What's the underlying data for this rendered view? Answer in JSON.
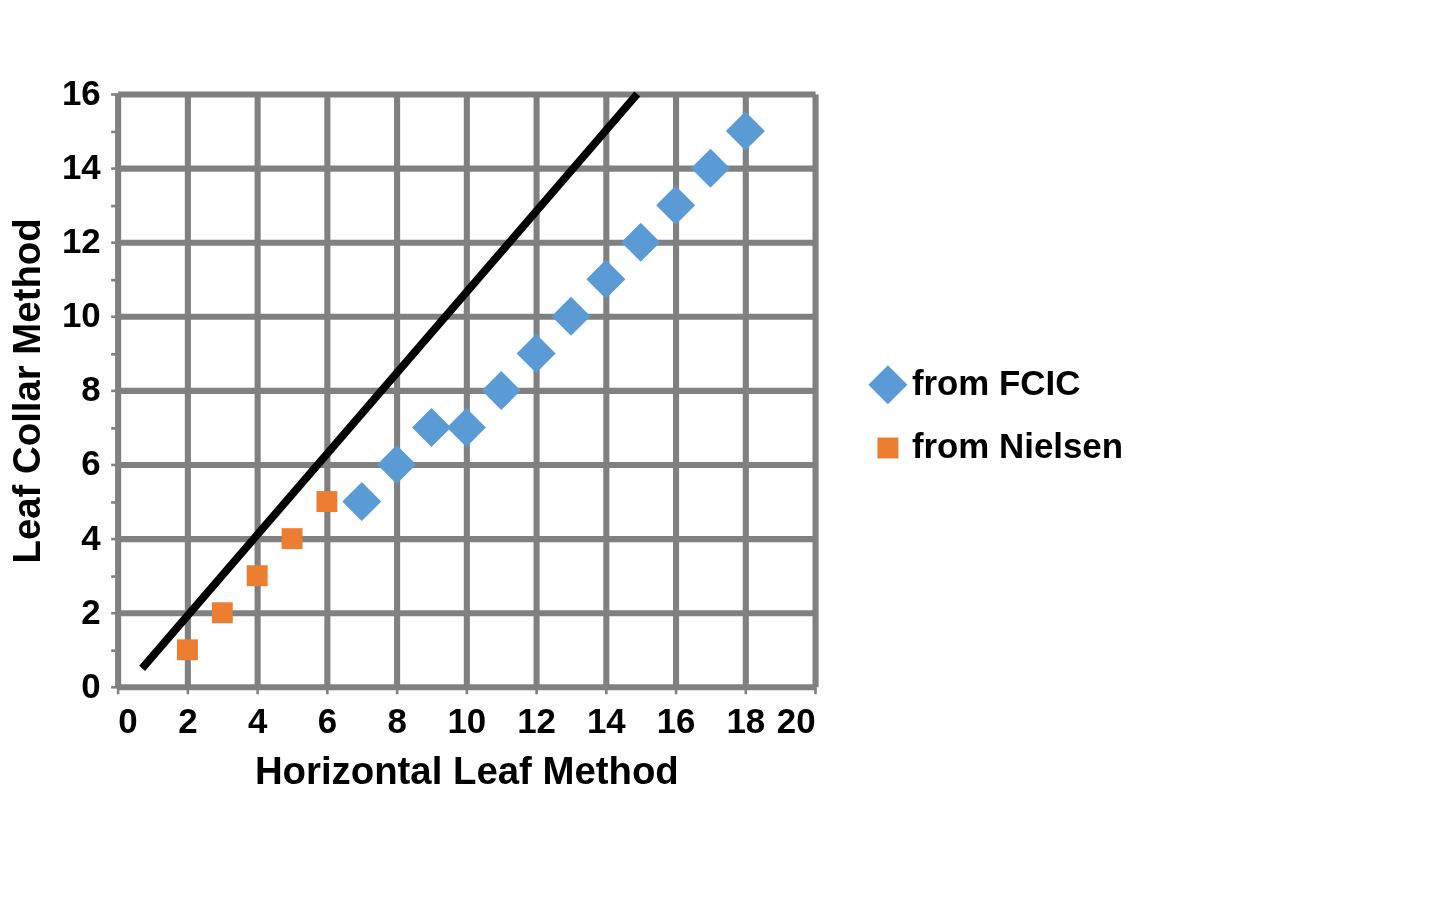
{
  "chart_data": {
    "type": "scatter",
    "xlabel": "Horizontal Leaf Method",
    "ylabel": "Leaf Collar Method",
    "series": [
      {
        "name": "from FCIC",
        "color": "#5b9bd5",
        "marker": "diamond",
        "x": [
          7,
          8,
          9,
          10,
          11,
          12,
          13,
          14,
          15,
          16,
          17,
          18
        ],
        "values": [
          5,
          6,
          7,
          7,
          8,
          9,
          10,
          11,
          12,
          13,
          14,
          15
        ]
      },
      {
        "name": "from Nielsen",
        "color": "#ed7d31",
        "marker": "square",
        "x": [
          2,
          3,
          4,
          5,
          6
        ],
        "values": [
          1,
          2,
          3,
          4,
          5
        ]
      },
      {
        "type": "line",
        "color": "#000000",
        "marker": "none",
        "x": [
          0.7,
          14.9
        ],
        "values": [
          0.5,
          16
        ]
      }
    ],
    "xlim": [
      0,
      20
    ],
    "xticks": [
      0,
      2,
      4,
      6,
      8,
      10,
      12,
      14,
      16,
      18,
      20
    ],
    "ylim": [
      0,
      16
    ],
    "yticks": [
      0,
      {
        "value": 1,
        "label": null
      },
      2,
      {
        "value": 3,
        "label": null
      },
      4,
      {
        "value": 5,
        "label": null
      },
      6,
      {
        "value": 7,
        "label": null
      },
      8,
      {
        "value": 9,
        "label": null
      },
      10,
      {
        "value": 11,
        "label": null
      },
      12,
      {
        "value": 13,
        "label": null
      },
      14,
      {
        "value": 15,
        "label": null
      },
      16
    ],
    "grid": true,
    "legend": "right"
  }
}
